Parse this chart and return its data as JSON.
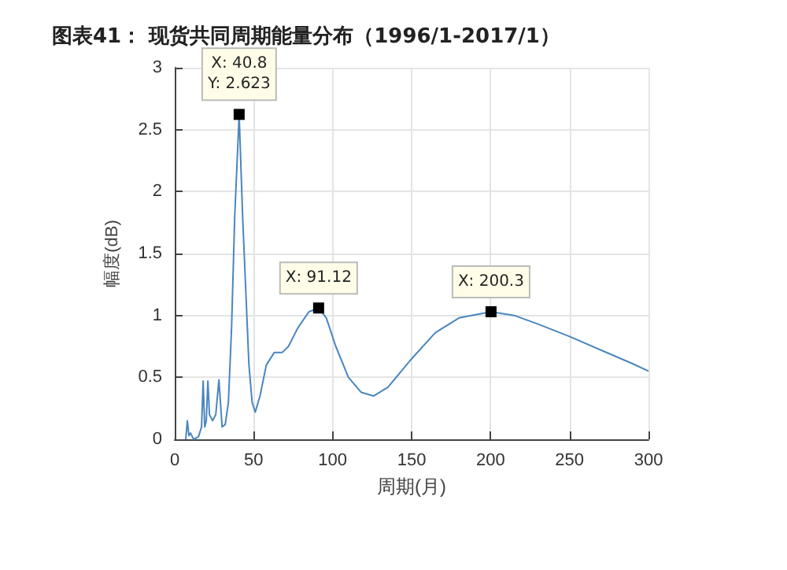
{
  "chart_data": {
    "type": "line",
    "title": "图表41： 现货共同周期能量分布（1996/1-2017/1）",
    "xlabel": "周期(月)",
    "ylabel": "幅度(dB)",
    "x": [
      7,
      8,
      9,
      10,
      12,
      15,
      17,
      18,
      19,
      20,
      21,
      22,
      24,
      26,
      28,
      30,
      32,
      34,
      36,
      38,
      40.8,
      43,
      45,
      47,
      49,
      51,
      54,
      58,
      63,
      68,
      72,
      78,
      85,
      91.12,
      96,
      102,
      110,
      118,
      126,
      135,
      150,
      165,
      180,
      200.3,
      215,
      230,
      250,
      270,
      290,
      300
    ],
    "series": [
      {
        "color": "#4a86c0",
        "values": [
          0,
          0.15,
          0.03,
          0.05,
          0,
          0.02,
          0.1,
          0.47,
          0.1,
          0.15,
          0.47,
          0.2,
          0.15,
          0.2,
          0.48,
          0.1,
          0.12,
          0.3,
          0.9,
          1.8,
          2.62,
          1.8,
          1.2,
          0.6,
          0.3,
          0.22,
          0.35,
          0.6,
          0.7,
          0.7,
          0.75,
          0.9,
          1.03,
          1.06,
          0.98,
          0.75,
          0.5,
          0.38,
          0.35,
          0.42,
          0.65,
          0.86,
          0.98,
          1.03,
          1.0,
          0.93,
          0.83,
          0.72,
          0.61,
          0.55
        ]
      }
    ],
    "xlim": [
      0,
      300
    ],
    "xticks": [
      0,
      50,
      100,
      150,
      200,
      250,
      300
    ],
    "ylim": [
      0,
      3
    ],
    "yticks": [
      0,
      0.5,
      1,
      1.5,
      2,
      2.5,
      3
    ],
    "grid": true,
    "marker": "none",
    "line_style": "solid",
    "annotations": [
      {
        "text": "X: 40.8\nY: 2.623",
        "x": 40.8,
        "y": 2.623
      },
      {
        "text": "X: 91.12",
        "x": 91.12,
        "y": 1.06
      },
      {
        "text": "X: 200.3",
        "x": 200.3,
        "y": 1.03
      }
    ]
  }
}
